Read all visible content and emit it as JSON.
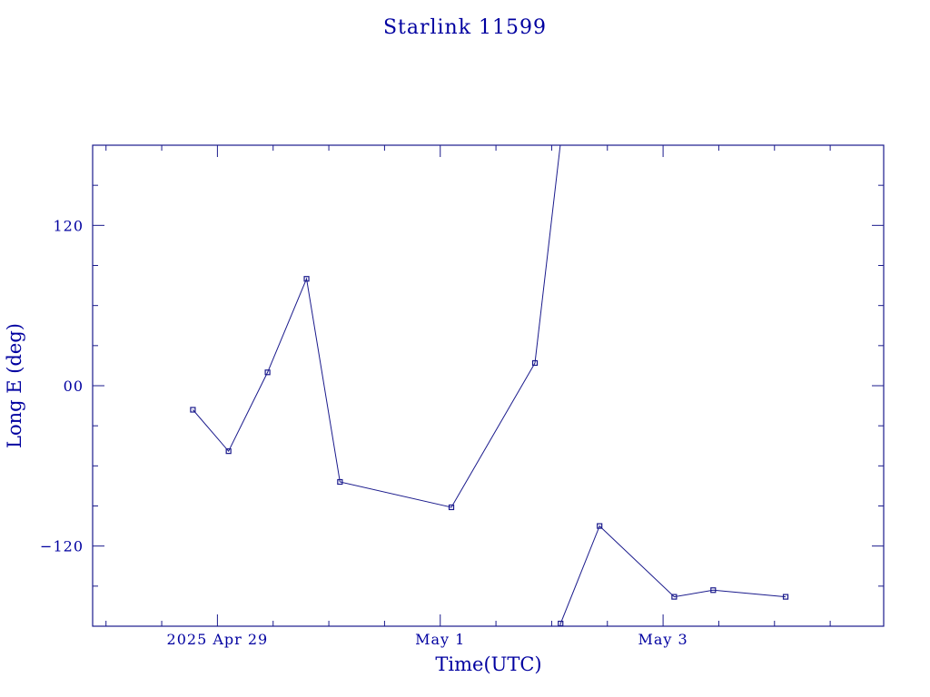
{
  "chart_data": {
    "type": "line",
    "title": "Starlink 11599",
    "xlabel": "Time(UTC)",
    "ylabel": "Long E (deg)",
    "x_ticks": [
      {
        "value": 0,
        "label": "2025 Apr 29"
      },
      {
        "value": 2,
        "label": "May  1"
      },
      {
        "value": 4,
        "label": "May  3"
      }
    ],
    "y_ticks": [
      {
        "value": 120,
        "label": "120"
      },
      {
        "value": 0,
        "label": "00"
      },
      {
        "value": -120,
        "label": "−120"
      }
    ],
    "xlim": [
      -1.12,
      5.98
    ],
    "ylim": [
      -180,
      180
    ],
    "x_minor_step": 0.5,
    "y_minor_step": 30,
    "x_units": "days after 2025 Apr 29 00:00 UTC",
    "y_wraps_at": 180,
    "grid": false,
    "legend": "none",
    "marker": "open-square",
    "colors": {
      "ink": "#0000a0",
      "line": "#1a1a8c"
    },
    "series": [
      {
        "name": "",
        "x": [
          -0.22,
          0.1,
          0.45,
          0.8,
          1.1,
          2.1,
          2.85,
          3.08,
          3.43,
          4.1,
          4.45,
          5.1
        ],
        "y": [
          -18,
          -49,
          10,
          80,
          -72,
          -91,
          17,
          -178,
          -105,
          -158,
          -153,
          -158
        ],
        "line_segments": [
          {
            "from": 0,
            "to": 6,
            "note": ""
          },
          {
            "from": 6,
            "to": 7,
            "wrap": true
          },
          {
            "from": 7,
            "to": 11
          }
        ]
      }
    ]
  }
}
